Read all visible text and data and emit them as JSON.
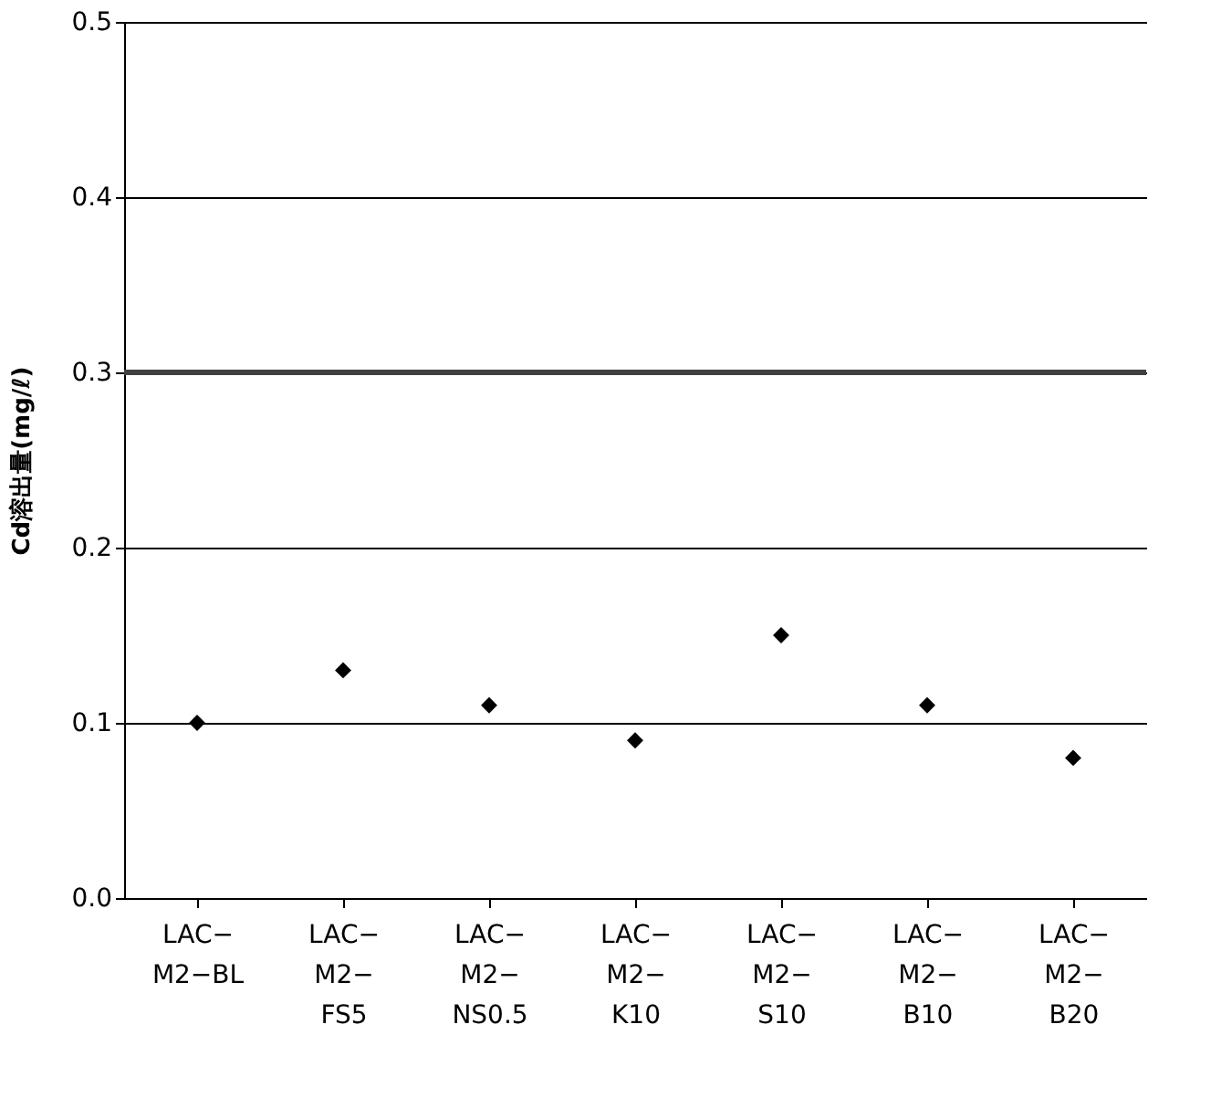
{
  "chart_data": {
    "type": "scatter",
    "ylabel": "Cd溶出量(mg/ℓ)",
    "categories": [
      "LAC−\nM2−BL",
      "LAC−\nM2−\nFS5",
      "LAC−\nM2−\nNS0.5",
      "LAC−\nM2−\nK10",
      "LAC−\nM2−\nS10",
      "LAC−\nM2−\nB10",
      "LAC−\nM2−\nB20"
    ],
    "series": [
      {
        "color": "#000000",
        "values": [
          0.1,
          0.13,
          0.11,
          0.09,
          0.15,
          0.11,
          0.08
        ]
      }
    ],
    "ylim": [
      0,
      0.5
    ],
    "yticks": [
      {
        "value": 0,
        "label": "0.0"
      },
      {
        "value": 0.1,
        "label": "0.1"
      },
      {
        "value": 0.2,
        "label": "0.2"
      },
      {
        "value": 0.3,
        "label": "0.3"
      },
      {
        "value": 0.4,
        "label": "0.4"
      },
      {
        "value": 0.5,
        "label": "0.5"
      }
    ],
    "ref_lines": [
      {
        "axis": "y",
        "value": 0.3,
        "color": "#404040",
        "line_style": "solid"
      }
    ],
    "grid": "y",
    "marker": "diamond"
  }
}
